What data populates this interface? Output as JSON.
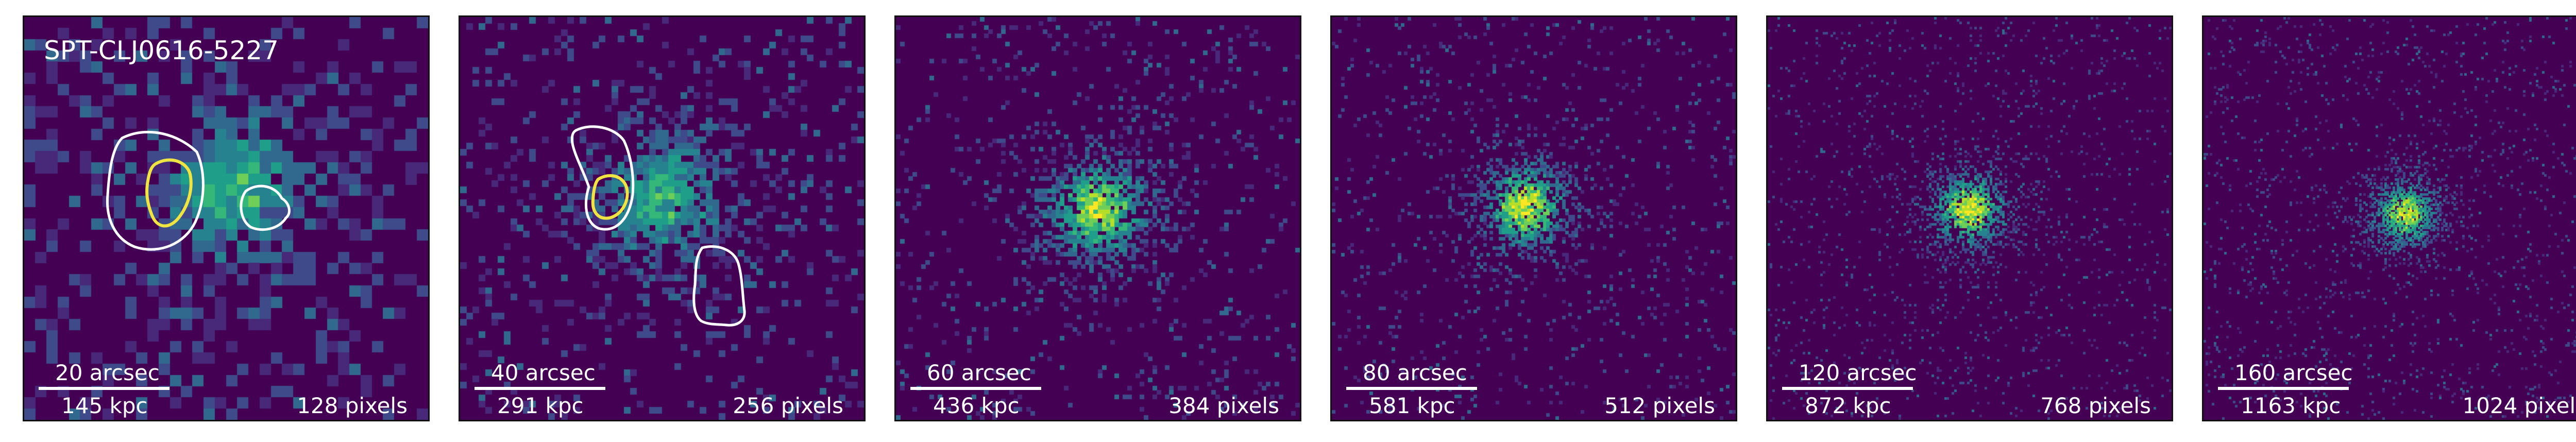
{
  "figure": {
    "cluster_name": "SPT-CLJ0616-5227",
    "colormap": [
      "#440154",
      "#482878",
      "#3e4a89",
      "#31688e",
      "#26828e",
      "#1f9e89",
      "#35b779",
      "#6ece58",
      "#b5de2b",
      "#fde725"
    ],
    "contour_colors": {
      "outer": "#ffffff",
      "inner": "#f0e442"
    },
    "panels": [
      {
        "arcsec": "20 arcsec",
        "kpc": "145 kpc",
        "pixels": "128 pixels"
      },
      {
        "arcsec": "40 arcsec",
        "kpc": "291 kpc",
        "pixels": "256 pixels"
      },
      {
        "arcsec": "60 arcsec",
        "kpc": "436 kpc",
        "pixels": "384 pixels"
      },
      {
        "arcsec": "80 arcsec",
        "kpc": "581 kpc",
        "pixels": "512 pixels"
      },
      {
        "arcsec": "120 arcsec",
        "kpc": "872 kpc",
        "pixels": "768 pixels"
      },
      {
        "arcsec": "160 arcsec",
        "kpc": "1163 kpc",
        "pixels": "1024 pixels"
      }
    ]
  }
}
